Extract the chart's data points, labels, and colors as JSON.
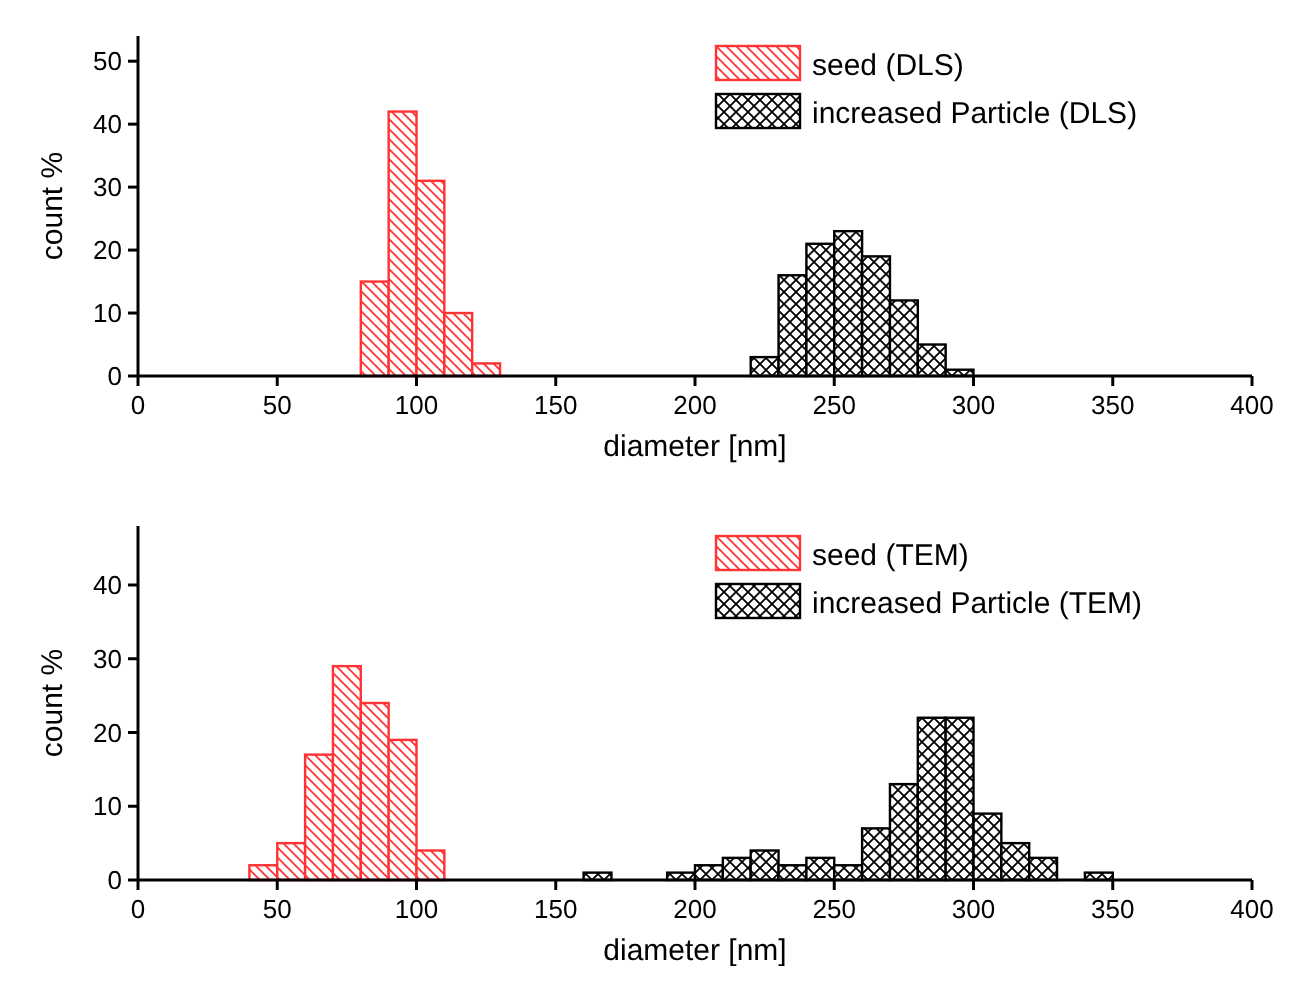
{
  "chart_data": [
    {
      "type": "histogram",
      "xlabel": "diameter [nm]",
      "ylabel": "count %",
      "xlim": [
        0,
        400
      ],
      "xticks": [
        0,
        50,
        100,
        150,
        200,
        250,
        300,
        350,
        400
      ],
      "ylim": [
        0,
        54
      ],
      "yticks": [
        0,
        10,
        20,
        30,
        40,
        50
      ],
      "legend": "top right",
      "bins": [
        80,
        90,
        100,
        110,
        120,
        130,
        140,
        150,
        160,
        170,
        180,
        190,
        200,
        210,
        220,
        230,
        240,
        250,
        260,
        270,
        280,
        290,
        300
      ],
      "series": [
        {
          "name": "seed (DLS)",
          "color": "#ff3333",
          "values": [
            15,
            42,
            31,
            10,
            2,
            0,
            0,
            0,
            0,
            0,
            0,
            0,
            0,
            0,
            null,
            null,
            null,
            null,
            null,
            null,
            null,
            null
          ]
        },
        {
          "name": "increased Particle (DLS)",
          "color": "#000000",
          "values": [
            null,
            null,
            null,
            null,
            null,
            null,
            null,
            null,
            null,
            null,
            null,
            null,
            null,
            null,
            3,
            16,
            21,
            23,
            19,
            12,
            5,
            1
          ]
        }
      ]
    },
    {
      "type": "histogram",
      "xlabel": "diameter [nm]",
      "ylabel": "count %",
      "xlim": [
        0,
        400
      ],
      "xticks": [
        0,
        50,
        100,
        150,
        200,
        250,
        300,
        350,
        400
      ],
      "ylim": [
        0,
        48
      ],
      "yticks": [
        0,
        10,
        20,
        30,
        40
      ],
      "legend": "top right",
      "bins": [
        40,
        50,
        60,
        70,
        80,
        90,
        100,
        110,
        120,
        130,
        140,
        150,
        160,
        170,
        180,
        190,
        200,
        210,
        220,
        230,
        240,
        250,
        260,
        270,
        280,
        290,
        300,
        310,
        320,
        330,
        340,
        350
      ],
      "series": [
        {
          "name": "seed (TEM)",
          "color": "#ff3333",
          "values": [
            2,
            5,
            17,
            29,
            24,
            19,
            4,
            0,
            0,
            0,
            0,
            0,
            null,
            null,
            null,
            null,
            null,
            null,
            null,
            null,
            null,
            null,
            null,
            null,
            null,
            null,
            null,
            null,
            null,
            null,
            null
          ]
        },
        {
          "name": "increased Particle (TEM)",
          "color": "#000000",
          "values": [
            null,
            null,
            null,
            null,
            null,
            null,
            null,
            null,
            null,
            null,
            null,
            null,
            1,
            0,
            0,
            1,
            2,
            3,
            4,
            2,
            3,
            2,
            7,
            13,
            22,
            22,
            9,
            5,
            3,
            0,
            1
          ]
        }
      ]
    }
  ]
}
